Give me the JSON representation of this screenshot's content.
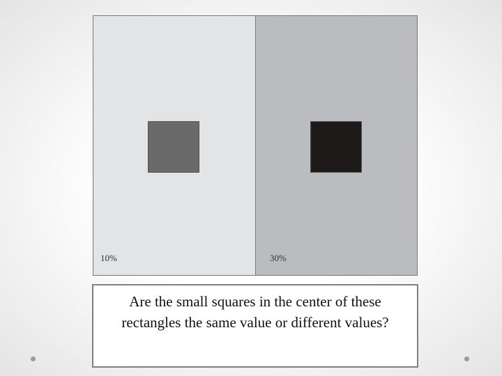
{
  "panels": [
    {
      "label": "10%"
    },
    {
      "label": "30%"
    }
  ],
  "caption": "Are the small squares in the center of these rectangles the same value or different values?"
}
